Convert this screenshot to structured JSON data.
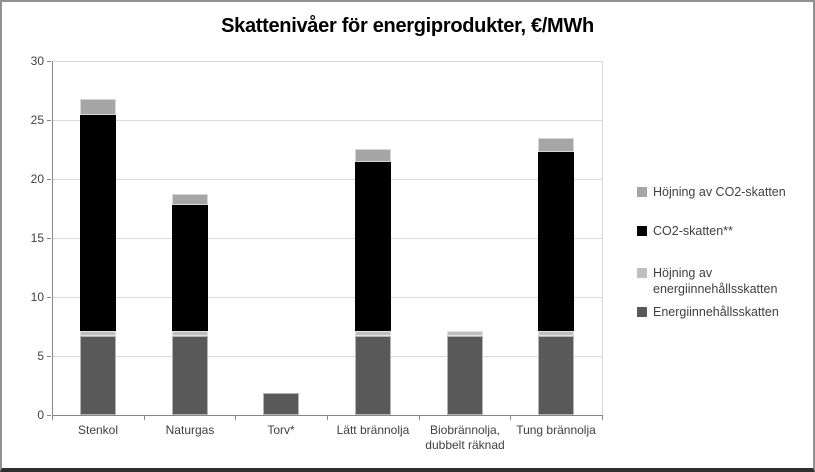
{
  "figure": {
    "background": "#ffffff",
    "outer_border_color": "#919191",
    "bottom_border_color": "#303030"
  },
  "chart_data": {
    "type": "bar",
    "subtype": "stacked",
    "title": "Skattenivåer för energiprodukter, €/MWh",
    "categories": [
      "Stenkol",
      "Naturgas",
      "Torv*",
      "Lätt brännolja",
      "Biobrännolja,\ndubbelt räknad",
      "Tung brännolja"
    ],
    "series": [
      {
        "name": "Energiinnehållsskatten",
        "color": "#595959",
        "values": [
          6.7,
          6.7,
          1.9,
          6.7,
          6.7,
          6.7
        ]
      },
      {
        "name": "Höjning av energiinnehållsskatten",
        "color": "#bfbfbf",
        "values": [
          0.4,
          0.4,
          0,
          0.4,
          0.4,
          0.4
        ]
      },
      {
        "name": "CO2-skatten**",
        "color": "#000000",
        "values": [
          18.3,
          10.7,
          0,
          14.3,
          0,
          15.2
        ]
      },
      {
        "name": "Höjning av CO2-skatten",
        "color": "#a6a6a6",
        "values": [
          1.4,
          0.9,
          0,
          1.1,
          0,
          1.2
        ]
      }
    ],
    "ylim": [
      0,
      30
    ],
    "yticks": [
      0,
      5,
      10,
      15,
      20,
      25,
      30
    ],
    "xlabel": "",
    "ylabel": "",
    "grid": true,
    "legend_position": "right",
    "legend_order_series_indices": [
      3,
      2,
      1,
      0
    ],
    "axis_color": "#868686",
    "grid_color": "#d9d9d9",
    "text_color": "#404040"
  }
}
